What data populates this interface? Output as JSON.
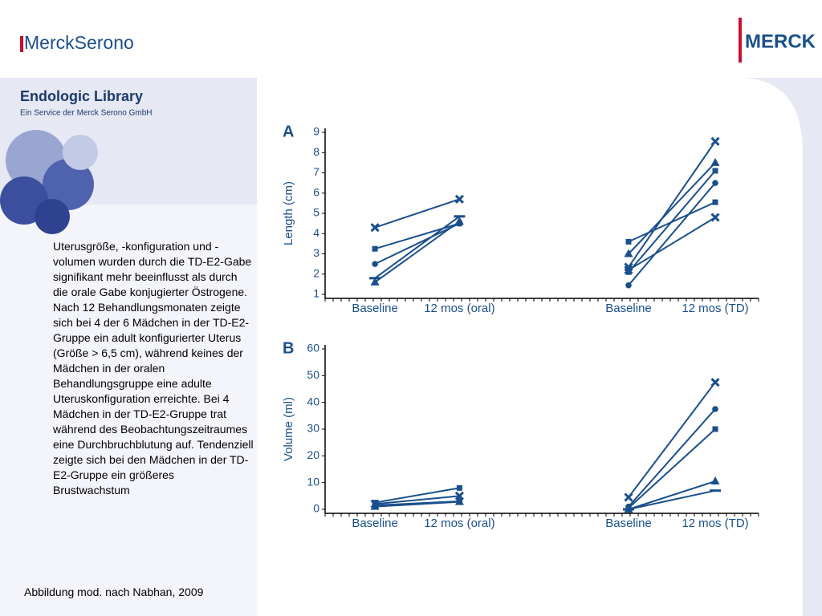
{
  "header": {
    "left_logo": "MerckSerono",
    "right_logo": "MERCK",
    "title": "Endologic Library",
    "subtitle": "Ein Service der Merck Serono GmbH"
  },
  "body_text": "Uterusgröße, -konfiguration und -volumen wurden durch die TD-E2-Gabe signifikant mehr beeinflusst als durch die orale Gabe konjugierter Östrogene. Nach 12 Behandlungsmonaten zeigte sich bei 4 der 6 Mädchen in der TD-E2-Gruppe ein adult konfigurierter Uterus (Größe > 6,5 cm), während keines der Mädchen in der oralen Behandlungsgruppe eine adulte Uteruskonfiguration erreichte. Bei 4 Mädchen in der TD-E2-Gruppe trat während des Beobachtungszeitraumes eine Durchbruchblutung auf. Tendenziell zeigte sich bei den Mädchen in der TD-E2-Gruppe ein größeres Brustwachstum",
  "caption": "Abbildung mod. nach Nabhan, 2009",
  "chart_data": [
    {
      "type": "line",
      "title": "A",
      "ylabel": "Length (cm)",
      "categories": [
        "Baseline",
        "12 mos (oral)",
        "Baseline",
        "12 mos (TD)"
      ],
      "ylim": [
        1,
        9
      ],
      "yticks": [
        1,
        2,
        3,
        4,
        5,
        6,
        7,
        8,
        9
      ],
      "series": [
        {
          "color": "#1a4f8c",
          "marker": "x",
          "values": [
            4.3,
            5.7,
            null,
            null
          ]
        },
        {
          "color": "#1a4f8c",
          "marker": "square",
          "values": [
            3.25,
            4.5,
            null,
            null
          ]
        },
        {
          "color": "#1a4f8c",
          "marker": "circle",
          "values": [
            2.5,
            4.5,
            null,
            null
          ]
        },
        {
          "color": "#1a4f8c",
          "marker": "dash",
          "values": [
            1.8,
            4.85,
            null,
            null
          ]
        },
        {
          "color": "#1a4f8c",
          "marker": "triangle",
          "values": [
            1.6,
            4.6,
            null,
            null
          ]
        },
        {
          "color": "#1a4f8c",
          "marker": "x",
          "values": [
            null,
            null,
            2.35,
            8.55
          ]
        },
        {
          "color": "#1a4f8c",
          "marker": "triangle",
          "values": [
            null,
            null,
            3.0,
            7.5
          ]
        },
        {
          "color": "#1a4f8c",
          "marker": "square",
          "values": [
            null,
            null,
            2.1,
            7.1
          ]
        },
        {
          "color": "#1a4f8c",
          "marker": "circle",
          "values": [
            null,
            null,
            1.45,
            6.5
          ]
        },
        {
          "color": "#1a4f8c",
          "marker": "square",
          "values": [
            null,
            null,
            3.6,
            5.55
          ]
        },
        {
          "color": "#1a4f8c",
          "marker": "x",
          "values": [
            null,
            null,
            2.2,
            4.8
          ]
        }
      ]
    },
    {
      "type": "line",
      "title": "B",
      "ylabel": "Volume (ml)",
      "categories": [
        "Baseline",
        "12 mos (oral)",
        "Baseline",
        "12 mos (TD)"
      ],
      "ylim": [
        0,
        60
      ],
      "yticks": [
        0,
        10,
        20,
        30,
        40,
        50,
        60
      ],
      "series": [
        {
          "color": "#1a4f8c",
          "marker": "square",
          "values": [
            2.5,
            8,
            null,
            null
          ]
        },
        {
          "color": "#1a4f8c",
          "marker": "x",
          "values": [
            2,
            5,
            null,
            null
          ]
        },
        {
          "color": "#1a4f8c",
          "marker": "circle",
          "values": [
            1.5,
            3,
            null,
            null
          ]
        },
        {
          "color": "#1a4f8c",
          "marker": "triangle",
          "values": [
            1,
            2.8,
            null,
            null
          ]
        },
        {
          "color": "#1a4f8c",
          "marker": "x",
          "values": [
            null,
            null,
            4.5,
            47.5
          ]
        },
        {
          "color": "#1a4f8c",
          "marker": "circle",
          "values": [
            null,
            null,
            1,
            37.5
          ]
        },
        {
          "color": "#1a4f8c",
          "marker": "square",
          "values": [
            null,
            null,
            0.5,
            30
          ]
        },
        {
          "color": "#1a4f8c",
          "marker": "triangle",
          "values": [
            null,
            null,
            0,
            10.5
          ]
        },
        {
          "color": "#1a4f8c",
          "marker": "dash",
          "values": [
            null,
            null,
            0,
            7
          ]
        }
      ]
    }
  ]
}
